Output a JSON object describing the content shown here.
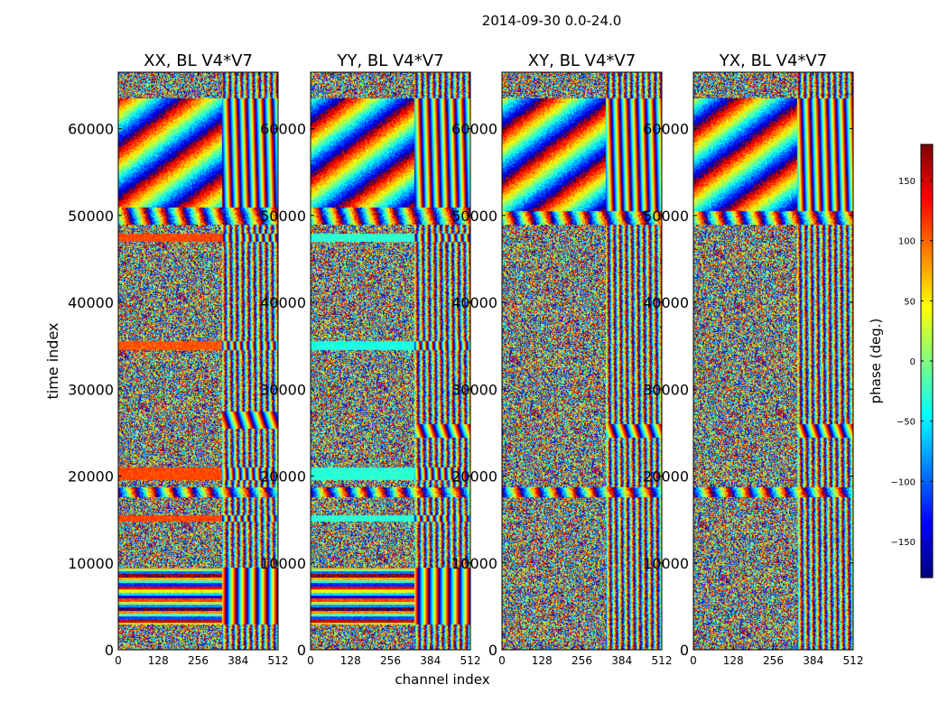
{
  "figure_title": "2014-09-30 0.0-24.0",
  "colors": {
    "colormap": [
      "#00007f",
      "#0000ff",
      "#007fff",
      "#00ffff",
      "#7fff7f",
      "#ffff00",
      "#ff7f00",
      "#ff0000",
      "#7f0000"
    ]
  },
  "chart_data": [
    {
      "type": "heatmap",
      "title": "XX, BL V4*V7",
      "xlabel": "channel index",
      "ylabel": "time index",
      "xlim": [
        0,
        512
      ],
      "ylim": [
        0,
        66500
      ],
      "xticks": [
        0,
        128,
        256,
        384,
        512
      ],
      "yticks": [
        0,
        10000,
        20000,
        30000,
        40000,
        50000,
        60000
      ],
      "x_tick_labels": [
        "0",
        "128",
        "256",
        "384",
        "512"
      ],
      "y_tick_labels": [
        "0",
        "10000",
        "20000",
        "30000",
        "40000",
        "50000",
        "60000"
      ],
      "value": "phase (deg.)",
      "vrange": [
        -180,
        180
      ],
      "bands": [
        {
          "from": 51000,
          "to": 63500,
          "pattern": "slanted-fringes",
          "phase_offset": 120
        },
        {
          "from": 49000,
          "to": 51000,
          "pattern": "fringes-low-x",
          "phase_offset": 0
        },
        {
          "from": 47000,
          "to": 48000,
          "pattern": "flat",
          "phase_offset": 110
        },
        {
          "from": 34500,
          "to": 35600,
          "pattern": "flat",
          "phase_offset": 105
        },
        {
          "from": 25500,
          "to": 27500,
          "pattern": "fringes-high-x",
          "phase_offset": 0
        },
        {
          "from": 19600,
          "to": 21000,
          "pattern": "flat",
          "phase_offset": 110
        },
        {
          "from": 17600,
          "to": 18800,
          "pattern": "fringes-low-x",
          "phase_offset": 0
        },
        {
          "from": 14800,
          "to": 15500,
          "pattern": "flat",
          "phase_offset": 110
        },
        {
          "from": 3000,
          "to": 9500,
          "pattern": "stripes",
          "phase_offset": 0
        }
      ]
    },
    {
      "type": "heatmap",
      "title": "YY, BL V4*V7",
      "xlabel": "channel index",
      "ylabel": "",
      "xlim": [
        0,
        512
      ],
      "ylim": [
        0,
        66500
      ],
      "xticks": [
        0,
        128,
        256,
        384,
        512
      ],
      "yticks": [
        0,
        10000,
        20000,
        30000,
        40000,
        50000,
        60000
      ],
      "x_tick_labels": [
        "0",
        "128",
        "256",
        "384",
        "512"
      ],
      "y_tick_labels": [
        "0",
        "10000",
        "20000",
        "30000",
        "40000",
        "50000",
        "60000"
      ],
      "value": "phase (deg.)",
      "vrange": [
        -180,
        180
      ],
      "bands": [
        {
          "from": 51000,
          "to": 63500,
          "pattern": "slanted-fringes",
          "phase_offset": -40
        },
        {
          "from": 49000,
          "to": 51000,
          "pattern": "fringes-low-x",
          "phase_offset": 0
        },
        {
          "from": 47000,
          "to": 48000,
          "pattern": "flat",
          "phase_offset": -30
        },
        {
          "from": 34500,
          "to": 35600,
          "pattern": "flat",
          "phase_offset": -35
        },
        {
          "from": 24500,
          "to": 26000,
          "pattern": "fringes-high-x",
          "phase_offset": 0
        },
        {
          "from": 19600,
          "to": 21000,
          "pattern": "flat",
          "phase_offset": -30
        },
        {
          "from": 17600,
          "to": 18800,
          "pattern": "fringes-low-x",
          "phase_offset": 0
        },
        {
          "from": 14800,
          "to": 15500,
          "pattern": "flat",
          "phase_offset": -30
        },
        {
          "from": 3000,
          "to": 9500,
          "pattern": "stripes",
          "phase_offset": 0
        }
      ]
    },
    {
      "type": "heatmap",
      "title": "XY, BL V4*V7",
      "xlabel": "",
      "ylabel": "",
      "xlim": [
        0,
        512
      ],
      "ylim": [
        0,
        66500
      ],
      "xticks": [
        0,
        128,
        256,
        384,
        512
      ],
      "yticks": [
        0,
        10000,
        20000,
        30000,
        40000,
        50000,
        60000
      ],
      "x_tick_labels": [
        "0",
        "128",
        "256",
        "384",
        "512"
      ],
      "y_tick_labels": [
        "0",
        "10000",
        "20000",
        "30000",
        "40000",
        "50000",
        "60000"
      ],
      "value": "phase (deg.)",
      "vrange": [
        -180,
        180
      ],
      "bands": [
        {
          "from": 50500,
          "to": 63500,
          "pattern": "slanted-fringes",
          "phase_offset": 0
        },
        {
          "from": 49000,
          "to": 50500,
          "pattern": "fringes-low-x",
          "phase_offset": 0
        },
        {
          "from": 24500,
          "to": 26000,
          "pattern": "fringes-high-x",
          "phase_offset": 0
        },
        {
          "from": 17600,
          "to": 18800,
          "pattern": "fringes-low-x",
          "phase_offset": 0
        }
      ]
    },
    {
      "type": "heatmap",
      "title": "YX, BL V4*V7",
      "xlabel": "",
      "ylabel": "",
      "xlim": [
        0,
        512
      ],
      "ylim": [
        0,
        66500
      ],
      "xticks": [
        0,
        128,
        256,
        384,
        512
      ],
      "yticks": [
        0,
        10000,
        20000,
        30000,
        40000,
        50000,
        60000
      ],
      "x_tick_labels": [
        "0",
        "128",
        "256",
        "384",
        "512"
      ],
      "y_tick_labels": [
        "0",
        "10000",
        "20000",
        "30000",
        "40000",
        "50000",
        "60000"
      ],
      "value": "phase (deg.)",
      "vrange": [
        -180,
        180
      ],
      "bands": [
        {
          "from": 50500,
          "to": 63500,
          "pattern": "slanted-fringes",
          "phase_offset": 0
        },
        {
          "from": 49000,
          "to": 50500,
          "pattern": "fringes-low-x",
          "phase_offset": 0
        },
        {
          "from": 24500,
          "to": 26000,
          "pattern": "fringes-high-x",
          "phase_offset": 0
        },
        {
          "from": 17600,
          "to": 18800,
          "pattern": "fringes-low-x",
          "phase_offset": 0
        }
      ]
    }
  ],
  "colorbar": {
    "label": "phase (deg.)",
    "range": [
      -180,
      180
    ],
    "ticks": [
      -150,
      -100,
      -50,
      0,
      50,
      100,
      150
    ],
    "tick_labels": [
      "−150",
      "−100",
      "−50",
      "0",
      "50",
      "100",
      "150"
    ]
  }
}
